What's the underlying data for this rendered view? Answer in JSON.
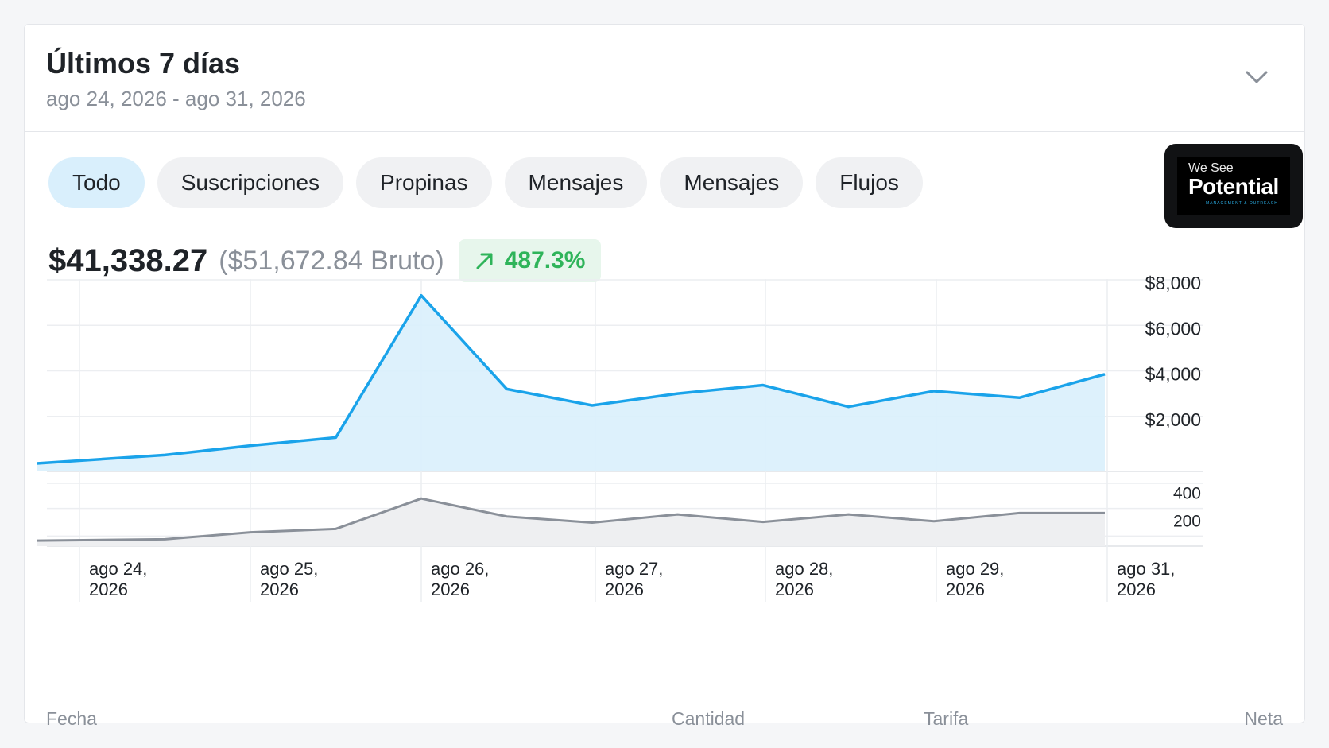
{
  "header": {
    "title": "Últimos 7 días",
    "subtitle": "ago 24, 2026 - ago 31, 2026",
    "chevron_icon": "chevron-down-icon"
  },
  "filters": [
    "Todo",
    "Suscripciones",
    "Propinas",
    "Mensajes",
    "Mensajes",
    "Flujos"
  ],
  "active_filter": "Todo",
  "logo": {
    "top": "We See",
    "main": "Potential",
    "tagline": "MANAGEMENT & OUTREACH"
  },
  "summary": {
    "net": "$41,338.27",
    "gross": "($51,672.84 Bruto)",
    "growth": "487.3%",
    "growth_icon": "arrow-up-right-icon"
  },
  "colors": {
    "accent": "#1aa3ea",
    "area": "#d9effc",
    "secondary_line": "#8a9099",
    "secondary_area": "#eeeff1",
    "growth": "#2fb45a",
    "active_pill": "#d9effc"
  },
  "chart_data": {
    "type": "area",
    "x_ticks": [
      {
        "date": "2026-08-24",
        "line1": "ago 24,",
        "line2": "2026"
      },
      {
        "date": "2026-08-25",
        "line1": "ago 25,",
        "line2": "2026"
      },
      {
        "date": "2026-08-26",
        "line1": "ago 26,",
        "line2": "2026"
      },
      {
        "date": "2026-08-27",
        "line1": "ago 27,",
        "line2": "2026"
      },
      {
        "date": "2026-08-28",
        "line1": "ago 28,",
        "line2": "2026"
      },
      {
        "date": "2026-08-29",
        "line1": "ago 29,",
        "line2": "2026"
      },
      {
        "date": "2026-08-31",
        "line1": "ago 31,",
        "line2": "2026"
      }
    ],
    "top_yticks": [
      "$8,000",
      "$6,000",
      "$4,000",
      "$2,000"
    ],
    "top_ylim": [
      0,
      8000
    ],
    "bottom_yticks": [
      "400",
      "200"
    ],
    "bottom_ylim": [
      0,
      450
    ],
    "grid": true,
    "series": [
      {
        "points": [
          {
            "x": "2026-08-23T18:00",
            "y": 350
          },
          {
            "x": "2026-08-24T12:00",
            "y": 720
          },
          {
            "x": "2026-08-25T00:00",
            "y": 1130
          },
          {
            "x": "2026-08-25T12:00",
            "y": 1490
          },
          {
            "x": "2026-08-26T00:00",
            "y": 7730
          },
          {
            "x": "2026-08-26T12:00",
            "y": 3620
          },
          {
            "x": "2026-08-27T00:00",
            "y": 2900
          },
          {
            "x": "2026-08-27T12:00",
            "y": 3420
          },
          {
            "x": "2026-08-28T00:00",
            "y": 3790
          },
          {
            "x": "2026-08-28T12:00",
            "y": 2840
          },
          {
            "x": "2026-08-29T00:00",
            "y": 3530
          },
          {
            "x": "2026-08-29T12:00",
            "y": 3240
          },
          {
            "x": "2026-08-30T00:00",
            "y": 4270
          }
        ]
      },
      {
        "points": [
          {
            "x": "2026-08-23T18:00",
            "y": 40
          },
          {
            "x": "2026-08-24T12:00",
            "y": 50
          },
          {
            "x": "2026-08-25T00:00",
            "y": 100
          },
          {
            "x": "2026-08-25T12:00",
            "y": 125
          },
          {
            "x": "2026-08-26T00:00",
            "y": 345
          },
          {
            "x": "2026-08-26T12:00",
            "y": 215
          },
          {
            "x": "2026-08-27T00:00",
            "y": 170
          },
          {
            "x": "2026-08-27T12:00",
            "y": 230
          },
          {
            "x": "2026-08-28T00:00",
            "y": 175
          },
          {
            "x": "2026-08-28T12:00",
            "y": 230
          },
          {
            "x": "2026-08-29T00:00",
            "y": 180
          },
          {
            "x": "2026-08-29T12:00",
            "y": 240
          },
          {
            "x": "2026-08-30T00:00",
            "y": 240
          }
        ]
      }
    ]
  },
  "table_columns": [
    "Fecha",
    "Cantidad",
    "Tarifa",
    "Neta"
  ]
}
